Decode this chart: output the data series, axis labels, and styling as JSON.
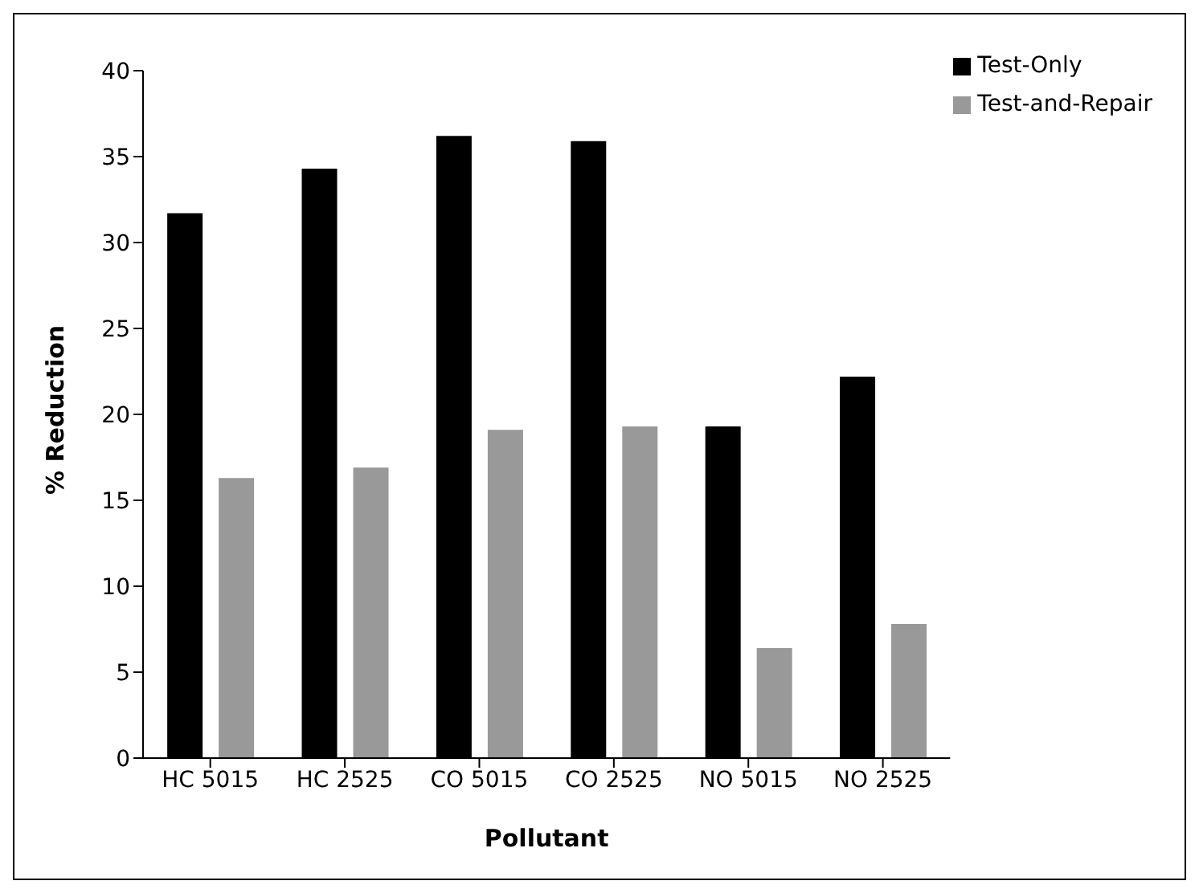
{
  "chart_data": {
    "type": "bar",
    "xlabel": "Pollutant",
    "ylabel": "% Reduction",
    "categories": [
      "HC 5015",
      "HC 2525",
      "CO 5015",
      "CO 2525",
      "NO 5015",
      "NO 2525"
    ],
    "series": [
      {
        "name": "Test-Only",
        "color": "#000000",
        "values": [
          31.7,
          34.3,
          36.2,
          35.9,
          19.3,
          22.2
        ]
      },
      {
        "name": "Test-and-Repair",
        "color": "#999999",
        "values": [
          16.3,
          16.9,
          19.1,
          19.3,
          6.4,
          7.8
        ]
      }
    ],
    "ylim": [
      0,
      40
    ],
    "yticks": [
      0,
      5,
      10,
      15,
      20,
      25,
      30,
      35,
      40
    ],
    "grid": false,
    "legend": "top right"
  }
}
